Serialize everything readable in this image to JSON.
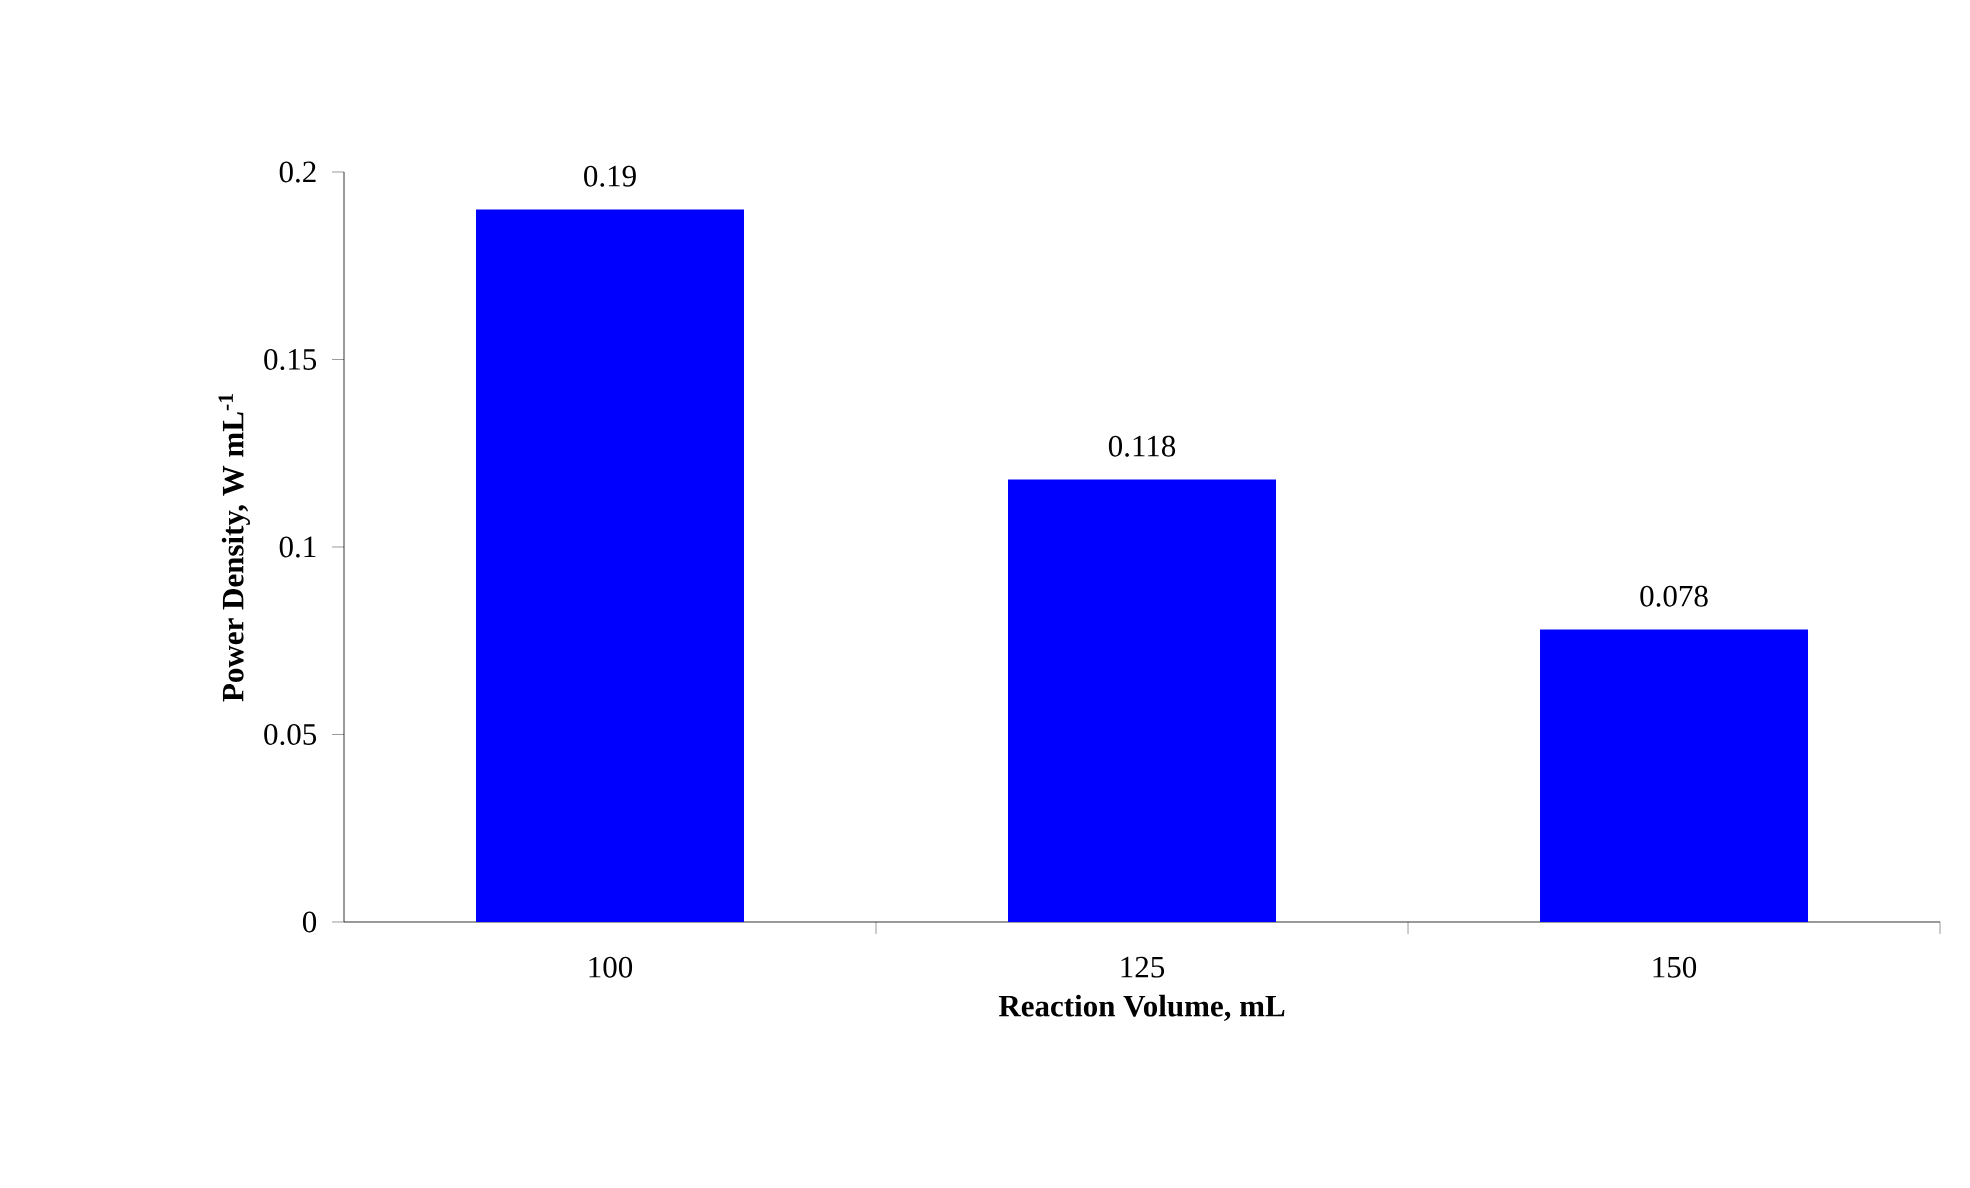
{
  "chart_data": {
    "type": "bar",
    "xlabel": "Reaction Volume, mL",
    "ylabel": "Power Density, W mL$^{-1}$",
    "categories": [
      "100",
      "125",
      "150"
    ],
    "values": [
      0.19,
      0.118,
      0.078
    ],
    "color": "#0000ff",
    "ylim": [
      0,
      0.2
    ],
    "yticks": [
      0,
      0.05,
      0.1,
      0.15,
      0.2
    ],
    "data_labels": true,
    "grid": false
  }
}
